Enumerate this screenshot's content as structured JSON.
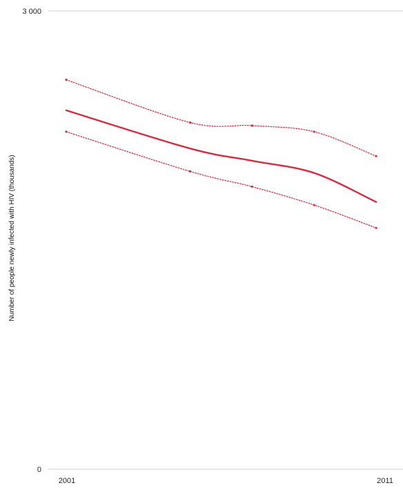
{
  "chart_data": {
    "type": "line",
    "title": "",
    "xlabel": "",
    "ylabel": "Number of people newly infected with HIV (thousands)",
    "ylim": [
      0,
      3000
    ],
    "y_tick_labels": [
      "0",
      "3 000"
    ],
    "x_tick_labels": [
      "2001",
      "2011"
    ],
    "grid": "top-gridline-only",
    "colors": {
      "series": "#e0283c",
      "axis": "#cccccc",
      "text": "#222222"
    },
    "series": [
      {
        "role": "estimate",
        "style": "solid",
        "x": [
          2001,
          2005,
          2007,
          2009,
          2011
        ],
        "values": [
          2350,
          2100,
          2020,
          1940,
          1750
        ]
      },
      {
        "role": "upper bound",
        "style": "dotted",
        "x": [
          2001,
          2005,
          2007,
          2009,
          2011
        ],
        "values": [
          2550,
          2270,
          2250,
          2210,
          2050
        ]
      },
      {
        "role": "lower bound",
        "style": "dotted",
        "x": [
          2001,
          2005,
          2007,
          2009,
          2011
        ],
        "values": [
          2210,
          1950,
          1850,
          1730,
          1580
        ]
      }
    ]
  }
}
